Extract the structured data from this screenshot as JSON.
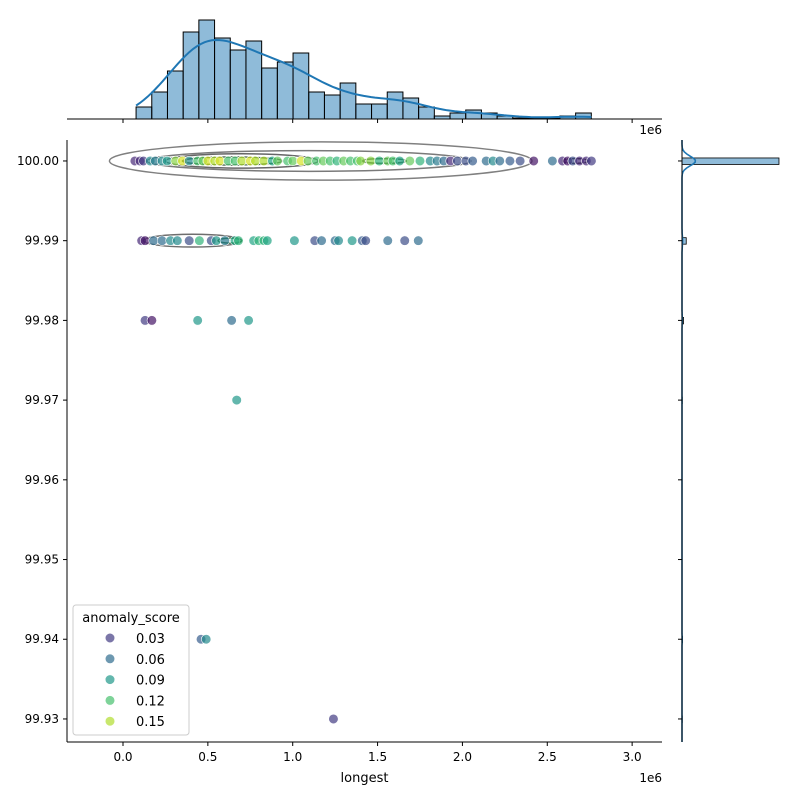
{
  "chart_data": {
    "type": "scatter",
    "subtype": "jointplot with kde contours and marginal histograms",
    "xlabel": "longest",
    "ylabel": "",
    "x_offset_label": "1e6",
    "xlim": [
      -0.33,
      3.176
    ],
    "ylim": [
      99.92711,
      100.00263
    ],
    "x_ticks": [
      "0.0",
      "0.5",
      "1.0",
      "1.5",
      "2.0",
      "2.5",
      "3.0"
    ],
    "x_tick_values": [
      0,
      0.5,
      1.0,
      1.5,
      2.0,
      2.5,
      3.0
    ],
    "y_ticks": [
      "100.00",
      "99.99",
      "99.98",
      "99.97",
      "99.96",
      "99.95",
      "99.94",
      "99.93"
    ],
    "y_tick_values": [
      100.0,
      99.99,
      99.98,
      99.97,
      99.96,
      99.95,
      99.94,
      99.93
    ],
    "x_units": "×1e6",
    "hue": "anomaly_score",
    "colormap": "viridis",
    "hue_range": [
      0.0,
      0.17
    ],
    "point_alpha": 0.7,
    "legend": {
      "title": "anomaly_score",
      "placement": "lower-left",
      "entries": [
        "0.03",
        "0.06",
        "0.09",
        "0.12",
        "0.15"
      ],
      "values": [
        0.03,
        0.06,
        0.09,
        0.12,
        0.15
      ]
    },
    "points_columns": [
      "longest_1e6",
      "y",
      "anomaly_score"
    ],
    "points": [
      [
        0.07,
        100.0,
        0.02
      ],
      [
        0.1,
        100.0,
        0.02
      ],
      [
        0.12,
        100.0,
        0.03
      ],
      [
        0.16,
        100.0,
        0.08
      ],
      [
        0.19,
        100.0,
        0.07
      ],
      [
        0.23,
        100.0,
        0.08
      ],
      [
        0.26,
        100.0,
        0.09
      ],
      [
        0.31,
        100.0,
        0.14
      ],
      [
        0.35,
        100.0,
        0.16
      ],
      [
        0.39,
        100.0,
        0.08
      ],
      [
        0.44,
        100.0,
        0.12
      ],
      [
        0.47,
        100.0,
        0.13
      ],
      [
        0.5,
        100.0,
        0.16
      ],
      [
        0.54,
        100.0,
        0.15
      ],
      [
        0.57,
        100.0,
        0.16
      ],
      [
        0.62,
        100.0,
        0.12
      ],
      [
        0.66,
        100.0,
        0.12
      ],
      [
        0.7,
        100.0,
        0.15
      ],
      [
        0.75,
        100.0,
        0.16
      ],
      [
        0.78,
        100.0,
        0.15
      ],
      [
        0.83,
        100.0,
        0.15
      ],
      [
        0.88,
        100.0,
        0.1
      ],
      [
        0.91,
        100.0,
        0.13
      ],
      [
        0.97,
        100.0,
        0.12
      ],
      [
        1.0,
        100.0,
        0.13
      ],
      [
        1.05,
        100.0,
        0.16
      ],
      [
        1.09,
        100.0,
        0.13
      ],
      [
        1.14,
        100.0,
        0.12
      ],
      [
        1.18,
        100.0,
        0.13
      ],
      [
        1.22,
        100.0,
        0.12
      ],
      [
        1.26,
        100.0,
        0.11
      ],
      [
        1.3,
        100.0,
        0.13
      ],
      [
        1.34,
        100.0,
        0.12
      ],
      [
        1.38,
        100.0,
        0.12
      ],
      [
        1.4,
        100.0,
        0.14
      ],
      [
        1.46,
        100.0,
        0.14
      ],
      [
        1.51,
        100.0,
        0.11
      ],
      [
        1.56,
        100.0,
        0.13
      ],
      [
        1.59,
        100.0,
        0.12
      ],
      [
        1.63,
        100.0,
        0.1
      ],
      [
        1.69,
        100.0,
        0.13
      ],
      [
        1.75,
        100.0,
        0.11
      ],
      [
        1.81,
        100.0,
        0.08
      ],
      [
        1.85,
        100.0,
        0.07
      ],
      [
        1.89,
        100.0,
        0.06
      ],
      [
        1.93,
        100.0,
        0.02
      ],
      [
        1.97,
        100.0,
        0.04
      ],
      [
        2.02,
        100.0,
        0.04
      ],
      [
        2.06,
        100.0,
        0.05
      ],
      [
        2.14,
        100.0,
        0.06
      ],
      [
        2.18,
        100.0,
        0.08
      ],
      [
        2.22,
        100.0,
        0.06
      ],
      [
        2.28,
        100.0,
        0.05
      ],
      [
        2.34,
        100.0,
        0.04
      ],
      [
        2.42,
        100.0,
        0.01
      ],
      [
        2.53,
        100.0,
        0.06
      ],
      [
        2.59,
        100.0,
        0.02
      ],
      [
        2.62,
        100.0,
        0.01
      ],
      [
        2.65,
        100.0,
        0.04
      ],
      [
        2.69,
        100.0,
        0.02
      ],
      [
        2.73,
        100.0,
        0.02
      ],
      [
        2.76,
        100.0,
        0.03
      ],
      [
        0.11,
        99.99,
        0.02
      ],
      [
        0.13,
        99.99,
        0.01
      ],
      [
        0.18,
        99.99,
        0.06
      ],
      [
        0.23,
        99.99,
        0.06
      ],
      [
        0.28,
        99.99,
        0.08
      ],
      [
        0.32,
        99.99,
        0.08
      ],
      [
        0.39,
        99.99,
        0.04
      ],
      [
        0.45,
        99.99,
        0.11
      ],
      [
        0.52,
        99.99,
        0.04
      ],
      [
        0.55,
        99.99,
        0.09
      ],
      [
        0.6,
        99.99,
        0.07
      ],
      [
        0.66,
        99.99,
        0.1
      ],
      [
        0.68,
        99.99,
        0.11
      ],
      [
        0.77,
        99.99,
        0.1
      ],
      [
        0.8,
        99.99,
        0.11
      ],
      [
        0.83,
        99.99,
        0.11
      ],
      [
        0.85,
        99.99,
        0.1
      ],
      [
        1.01,
        99.99,
        0.09
      ],
      [
        1.13,
        99.99,
        0.04
      ],
      [
        1.17,
        99.99,
        0.06
      ],
      [
        1.25,
        99.99,
        0.06
      ],
      [
        1.27,
        99.99,
        0.08
      ],
      [
        1.35,
        99.99,
        0.09
      ],
      [
        1.41,
        99.99,
        0.05
      ],
      [
        1.43,
        99.99,
        0.04
      ],
      [
        1.56,
        99.99,
        0.06
      ],
      [
        1.66,
        99.99,
        0.04
      ],
      [
        1.74,
        99.99,
        0.06
      ],
      [
        0.13,
        99.98,
        0.03
      ],
      [
        0.17,
        99.98,
        0.01
      ],
      [
        0.44,
        99.98,
        0.09
      ],
      [
        0.64,
        99.98,
        0.06
      ],
      [
        0.74,
        99.98,
        0.09
      ],
      [
        0.67,
        99.97,
        0.09
      ],
      [
        0.46,
        99.94,
        0.05
      ],
      [
        0.49,
        99.94,
        0.08
      ],
      [
        1.24,
        99.93,
        0.03
      ]
    ],
    "kde_contours": [
      {
        "x_range": [
          -0.08,
          2.41
        ],
        "y_center": 100.0,
        "y_half": 0.0024,
        "color": "#808080"
      },
      {
        "x_range": [
          0.14,
          2.05
        ],
        "y_center": 100.0,
        "y_half": 0.0013,
        "color": "#7a7a7a"
      },
      {
        "x_range": [
          0.25,
          1.15
        ],
        "y_center": 100.0,
        "y_half": 0.0009,
        "color": "#666666"
      },
      {
        "x_range": [
          0.35,
          0.94
        ],
        "y_center": 100.0,
        "y_half": 0.0005,
        "color": "#3d5a3d"
      },
      {
        "x_range": [
          1.41,
          1.67
        ],
        "y_center": 100.0,
        "y_half": 0.0003,
        "color": "#3d5a3d"
      },
      {
        "x_range": [
          2.59,
          2.74
        ],
        "y_center": 100.0,
        "y_half": 0.0003,
        "color": "#333333"
      },
      {
        "x_range": [
          0.12,
          0.7
        ],
        "y_center": 99.99,
        "y_half": 0.0008,
        "color": "#6e6e6e"
      },
      {
        "x_range": [
          0.56,
          0.7
        ],
        "y_center": 99.99,
        "y_half": 0.0003,
        "color": "#2f6b3a"
      }
    ],
    "top_histogram": {
      "bin_start": 0.077,
      "bin_width": 0.0925,
      "counts": [
        4,
        9,
        16,
        29,
        33,
        27,
        23,
        26,
        17,
        19,
        22,
        9,
        8,
        12,
        5,
        5,
        9,
        7,
        4,
        1,
        2,
        3,
        2,
        1,
        0.3,
        0.2,
        0.2,
        1,
        2
      ],
      "ylim": [
        0,
        35
      ],
      "kde": true,
      "color": "#1f77b4"
    },
    "right_histogram": {
      "bins": [
        100.0,
        99.99,
        99.98,
        99.97,
        99.94,
        99.93
      ],
      "counts": [
        320,
        14,
        5,
        1,
        2,
        1
      ],
      "xlim": [
        0,
        330
      ],
      "kde": true,
      "color": "#1f77b4"
    }
  }
}
